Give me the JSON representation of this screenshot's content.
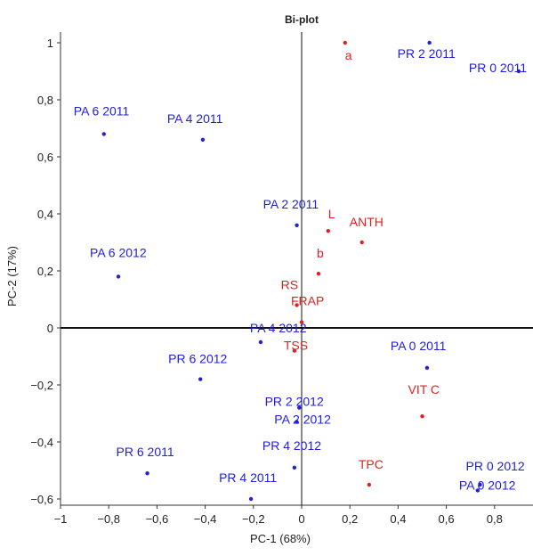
{
  "chart_data": {
    "type": "scatter",
    "title": "Bi-plot",
    "xlabel": "PC-1 (68%)",
    "ylabel": "PC-2 (17%)",
    "xlim": [
      -1,
      0.95
    ],
    "ylim": [
      -0.6,
      1.05
    ],
    "x_ticks": [
      "−1",
      "−0,8",
      "−0,6",
      "−0,4",
      "−0,2",
      "0",
      "0,2",
      "0,4",
      "0,6",
      "0,8"
    ],
    "x_tick_values": [
      -1,
      -0.8,
      -0.6,
      -0.4,
      -0.2,
      0,
      0.2,
      0.4,
      0.6,
      0.8
    ],
    "y_ticks": [
      "1",
      "0,8",
      "0,6",
      "0,4",
      "0,2",
      "0",
      "−0,2",
      "−0,4",
      "−0,6"
    ],
    "y_tick_values": [
      1,
      0.8,
      0.6,
      0.4,
      0.2,
      0,
      -0.2,
      -0.4,
      -0.6
    ],
    "grid": false,
    "colors": {
      "observations": "#2020e0",
      "variables": "#e02020"
    },
    "series": [
      {
        "group": "observations",
        "points": [
          {
            "label": "PR 2  2011",
            "x": 0.53,
            "y": 1.0
          },
          {
            "label": "PR 0  2011",
            "x": 0.9,
            "y": 0.9
          },
          {
            "label": "PA 6 2011",
            "x": -0.82,
            "y": 0.68
          },
          {
            "label": "PA 4  2011",
            "x": -0.41,
            "y": 0.66
          },
          {
            "label": "PA 2  2011",
            "x": -0.02,
            "y": 0.36
          },
          {
            "label": "PA 6 2012",
            "x": -0.76,
            "y": 0.18
          },
          {
            "label": "PA 4  2012",
            "x": -0.17,
            "y": -0.05
          },
          {
            "label": "PA 0  2011",
            "x": 0.52,
            "y": -0.14
          },
          {
            "label": "PR 6  2012",
            "x": -0.42,
            "y": -0.18
          },
          {
            "label": "PA 2  2012",
            "x": -0.01,
            "y": -0.28
          },
          {
            "label": "PR 2  2012",
            "x": -0.02,
            "y": -0.33
          },
          {
            "label": "PR 4  2012",
            "x": -0.03,
            "y": -0.49
          },
          {
            "label": "PR 6  2011",
            "x": -0.64,
            "y": -0.51
          },
          {
            "label": "PR 4  2011",
            "x": -0.21,
            "y": -0.6
          },
          {
            "label": "PR 0  2012",
            "x": 0.74,
            "y": -0.55
          },
          {
            "label": "PA 0 2012",
            "x": 0.73,
            "y": -0.57
          }
        ]
      },
      {
        "group": "variables",
        "points": [
          {
            "label": "a",
            "x": 0.18,
            "y": 1.0
          },
          {
            "label": "L",
            "x": 0.11,
            "y": 0.34
          },
          {
            "label": "ANTH",
            "x": 0.25,
            "y": 0.3
          },
          {
            "label": "b",
            "x": 0.07,
            "y": 0.19
          },
          {
            "label": "RS",
            "x": -0.02,
            "y": 0.08
          },
          {
            "label": "FRAP",
            "x": 0.0,
            "y": 0.02
          },
          {
            "label": "TSS",
            "x": -0.03,
            "y": -0.08
          },
          {
            "label": "VIT C",
            "x": 0.5,
            "y": -0.31
          },
          {
            "label": "TPC",
            "x": 0.28,
            "y": -0.55
          }
        ]
      }
    ]
  }
}
